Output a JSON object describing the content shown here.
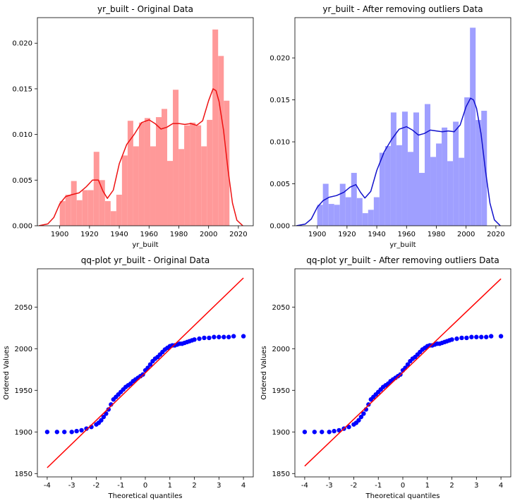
{
  "chart_data": [
    {
      "type": "bar",
      "subtype": "histogram-with-kde",
      "title": "yr_built - Original Data",
      "xlabel": "yr_built",
      "ylabel": "",
      "xlim": [
        1885,
        2030
      ],
      "ylim": [
        0,
        0.0228
      ],
      "xticks": [
        1900,
        1920,
        1940,
        1960,
        1980,
        2000,
        2020
      ],
      "yticks": [
        0.0,
        0.005,
        0.01,
        0.015,
        0.02
      ],
      "ytick_labels": [
        "0.000",
        "0.005",
        "0.010",
        "0.015",
        "0.020"
      ],
      "grid": false,
      "bar_color": "#ff9999",
      "kde_color": "#ee1111",
      "bin_width": 3.8,
      "bins_start": [
        1900.0,
        1903.8,
        1907.6,
        1911.4,
        1915.2,
        1919.0,
        1922.8,
        1926.6,
        1930.4,
        1934.2,
        1938.0,
        1941.8,
        1945.6,
        1949.4,
        1953.2,
        1957.0,
        1960.8,
        1964.6,
        1968.4,
        1972.2,
        1976.0,
        1979.8,
        1983.6,
        1987.4,
        1991.2,
        1995.0,
        1998.8,
        2002.6,
        2006.4,
        2010.2
      ],
      "values": [
        0.0027,
        0.0034,
        0.0049,
        0.0028,
        0.0039,
        0.0039,
        0.0081,
        0.005,
        0.0027,
        0.0016,
        0.0034,
        0.0077,
        0.0115,
        0.0087,
        0.0113,
        0.0118,
        0.0087,
        0.0119,
        0.0128,
        0.0071,
        0.0149,
        0.0084,
        0.011,
        0.0113,
        0.011,
        0.0087,
        0.0116,
        0.0215,
        0.0186,
        0.0137
      ],
      "kde": {
        "x": [
          1886,
          1892,
          1896,
          1900,
          1904,
          1908,
          1913,
          1918,
          1922,
          1926,
          1929,
          1932,
          1936,
          1940,
          1945,
          1950,
          1955,
          1960,
          1964,
          1968,
          1972,
          1976,
          1980,
          1984,
          1988,
          1992,
          1996,
          2000,
          2003,
          2005,
          2007,
          2010,
          2013,
          2016,
          2019,
          2023
        ],
        "y": [
          0.0,
          0.0002,
          0.0009,
          0.0024,
          0.0032,
          0.0034,
          0.0036,
          0.0043,
          0.005,
          0.005,
          0.0038,
          0.003,
          0.0039,
          0.0068,
          0.0089,
          0.01,
          0.0113,
          0.0116,
          0.0112,
          0.0106,
          0.0108,
          0.0112,
          0.0112,
          0.0111,
          0.0112,
          0.011,
          0.0115,
          0.0137,
          0.015,
          0.0148,
          0.0136,
          0.0105,
          0.0062,
          0.0025,
          0.0006,
          0.0
        ]
      }
    },
    {
      "type": "bar",
      "subtype": "histogram-with-kde",
      "title": "yr_built - After removing outliers Data",
      "xlabel": "yr_built",
      "ylabel": "",
      "xlim": [
        1885,
        2030
      ],
      "ylim": [
        0,
        0.0248
      ],
      "xticks": [
        1900,
        1920,
        1940,
        1960,
        1980,
        2000,
        2020
      ],
      "yticks": [
        0.0,
        0.005,
        0.01,
        0.015,
        0.02
      ],
      "ytick_labels": [
        "0.000",
        "0.005",
        "0.010",
        "0.015",
        "0.020"
      ],
      "grid": false,
      "bar_color": "#9f9fff",
      "kde_color": "#1111cc",
      "bin_width": 3.8,
      "bins_start": [
        1900.0,
        1903.8,
        1907.6,
        1911.4,
        1915.2,
        1919.0,
        1922.8,
        1926.6,
        1930.4,
        1934.2,
        1938.0,
        1941.8,
        1945.6,
        1949.4,
        1953.2,
        1957.0,
        1960.8,
        1964.6,
        1968.4,
        1972.2,
        1976.0,
        1979.8,
        1983.6,
        1987.4,
        1991.2,
        1995.0,
        1998.8,
        2002.6,
        2006.4,
        2010.2
      ],
      "values": [
        0.0025,
        0.005,
        0.0026,
        0.0025,
        0.005,
        0.0034,
        0.0063,
        0.0033,
        0.0015,
        0.0019,
        0.0034,
        0.0087,
        0.0095,
        0.0135,
        0.0096,
        0.0136,
        0.0088,
        0.0135,
        0.0063,
        0.0145,
        0.0082,
        0.0098,
        0.0117,
        0.0077,
        0.0124,
        0.0081,
        0.0153,
        0.0236,
        0.0126,
        0.0137
      ],
      "kde": {
        "x": [
          1886,
          1892,
          1896,
          1900,
          1904,
          1908,
          1913,
          1918,
          1922,
          1926,
          1929,
          1932,
          1936,
          1940,
          1945,
          1950,
          1955,
          1960,
          1964,
          1968,
          1972,
          1976,
          1980,
          1984,
          1988,
          1992,
          1996,
          2000,
          2003,
          2005,
          2007,
          2010,
          2013,
          2016,
          2019,
          2023
        ],
        "y": [
          0.0,
          0.0002,
          0.0008,
          0.0022,
          0.003,
          0.0034,
          0.0036,
          0.004,
          0.0046,
          0.0049,
          0.004,
          0.0033,
          0.0041,
          0.0066,
          0.0088,
          0.0103,
          0.0115,
          0.0118,
          0.0114,
          0.0108,
          0.011,
          0.0114,
          0.0113,
          0.0112,
          0.0113,
          0.0112,
          0.012,
          0.0142,
          0.0152,
          0.015,
          0.014,
          0.011,
          0.0066,
          0.0027,
          0.0007,
          0.0
        ]
      }
    },
    {
      "type": "scatter",
      "subtype": "qq-plot",
      "title": "qq-plot yr_built - Original Data",
      "xlabel": "Theoretical quantiles",
      "ylabel": "Ordered Values",
      "xlim": [
        -4.4,
        4.4
      ],
      "ylim": [
        1846,
        2096
      ],
      "xticks": [
        -4,
        -3,
        -2,
        -1,
        0,
        1,
        2,
        3,
        4
      ],
      "yticks": [
        1850,
        1900,
        1950,
        2000,
        2050
      ],
      "grid": false,
      "point_color": "#0000ff",
      "line_color": "#ff0000",
      "fit_line": {
        "x": [
          -4,
          4
        ],
        "y": [
          1857,
          2085
        ]
      },
      "points": {
        "x": [
          -4.0,
          -3.6,
          -3.3,
          -3.0,
          -2.8,
          -2.6,
          -2.4,
          -2.2,
          -2.0,
          -1.9,
          -1.8,
          -1.7,
          -1.6,
          -1.5,
          -1.4,
          -1.3,
          -1.2,
          -1.1,
          -1.0,
          -0.9,
          -0.8,
          -0.7,
          -0.6,
          -0.5,
          -0.4,
          -0.3,
          -0.2,
          -0.1,
          0.0,
          0.1,
          0.2,
          0.3,
          0.4,
          0.5,
          0.6,
          0.7,
          0.8,
          0.9,
          1.0,
          1.1,
          1.2,
          1.3,
          1.4,
          1.5,
          1.6,
          1.7,
          1.8,
          1.9,
          2.0,
          2.2,
          2.4,
          2.6,
          2.8,
          3.0,
          3.2,
          3.4,
          3.6,
          4.0
        ],
        "y": [
          1900,
          1900,
          1900,
          1900,
          1901,
          1902,
          1904,
          1906,
          1909,
          1911,
          1914,
          1918,
          1922,
          1927,
          1933,
          1939,
          1942,
          1945,
          1948,
          1951,
          1954,
          1956,
          1958,
          1961,
          1963,
          1965,
          1967,
          1969,
          1974,
          1977,
          1981,
          1985,
          1988,
          1990,
          1993,
          1996,
          1999,
          2001,
          2003,
          2004,
          2004,
          2005,
          2006,
          2006,
          2007,
          2008,
          2009,
          2010,
          2011,
          2012,
          2013,
          2013,
          2014,
          2014,
          2014,
          2014,
          2015,
          2015
        ]
      }
    },
    {
      "type": "scatter",
      "subtype": "qq-plot",
      "title": "qq-plot yr_built - After removing outliers Data",
      "xlabel": "Theoretical quantiles",
      "ylabel": "Ordered Values",
      "xlim": [
        -4.4,
        4.4
      ],
      "ylim": [
        1846,
        2096
      ],
      "xticks": [
        -4,
        -3,
        -2,
        -1,
        0,
        1,
        2,
        3,
        4
      ],
      "yticks": [
        1850,
        1900,
        1950,
        2000,
        2050
      ],
      "grid": false,
      "point_color": "#0000ff",
      "line_color": "#ff0000",
      "fit_line": {
        "x": [
          -4,
          4
        ],
        "y": [
          1859,
          2084
        ]
      },
      "points": {
        "x": [
          -4.0,
          -3.6,
          -3.3,
          -3.0,
          -2.8,
          -2.6,
          -2.4,
          -2.2,
          -2.0,
          -1.9,
          -1.8,
          -1.7,
          -1.6,
          -1.5,
          -1.4,
          -1.3,
          -1.2,
          -1.1,
          -1.0,
          -0.9,
          -0.8,
          -0.7,
          -0.6,
          -0.5,
          -0.4,
          -0.3,
          -0.2,
          -0.1,
          0.0,
          0.1,
          0.2,
          0.3,
          0.4,
          0.5,
          0.6,
          0.7,
          0.8,
          0.9,
          1.0,
          1.1,
          1.2,
          1.3,
          1.4,
          1.5,
          1.6,
          1.7,
          1.8,
          1.9,
          2.0,
          2.2,
          2.4,
          2.6,
          2.8,
          3.0,
          3.2,
          3.4,
          3.6,
          4.0
        ],
        "y": [
          1900,
          1900,
          1900,
          1900,
          1901,
          1902,
          1904,
          1906,
          1909,
          1911,
          1914,
          1918,
          1922,
          1927,
          1933,
          1939,
          1942,
          1945,
          1948,
          1951,
          1954,
          1956,
          1958,
          1961,
          1963,
          1965,
          1967,
          1969,
          1974,
          1977,
          1981,
          1985,
          1988,
          1990,
          1993,
          1996,
          1999,
          2001,
          2003,
          2004,
          2004,
          2005,
          2006,
          2006,
          2007,
          2008,
          2009,
          2010,
          2011,
          2012,
          2013,
          2013,
          2014,
          2014,
          2014,
          2014,
          2015,
          2015
        ]
      }
    }
  ]
}
